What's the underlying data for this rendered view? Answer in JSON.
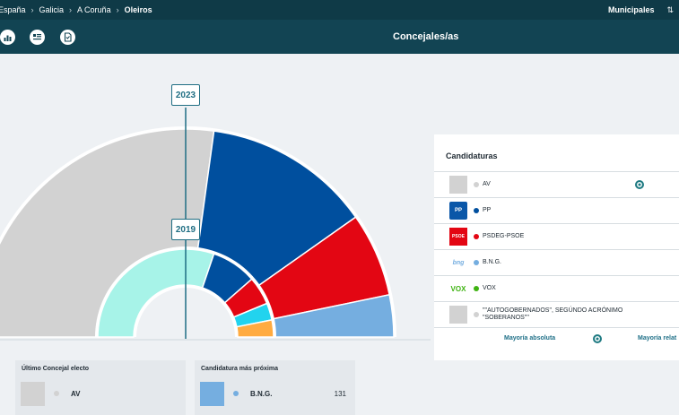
{
  "breadcrumb": [
    "España",
    "Galicia",
    "A Coruña",
    "Oleiros"
  ],
  "election_type": "Municipales",
  "toolbar": {
    "title": "Concejales/as",
    "buttons": [
      {
        "name": "chart-view-button",
        "icon": "bar-chart-icon"
      },
      {
        "name": "list-view-button",
        "icon": "list-icon"
      },
      {
        "name": "document-view-button",
        "icon": "document-icon"
      }
    ]
  },
  "chart_data": [
    {
      "type": "pie",
      "variant": "semicircle",
      "title": "2023",
      "series": [
        {
          "label": "AV",
          "value": 12.5,
          "color": "#d2d2d2"
        },
        {
          "label": "PP",
          "value": 6,
          "color": "#004f9e"
        },
        {
          "label": "PSDEG-PSOE",
          "value": 3,
          "color": "#e30613"
        },
        {
          "label": "B.N.G.",
          "value": 1.5,
          "color": "#75aee0"
        }
      ]
    },
    {
      "type": "pie",
      "variant": "semicircle",
      "title": "2019",
      "series": [
        {
          "label": "AV",
          "value": 14.5,
          "color": "#a7f3e8"
        },
        {
          "label": "PP",
          "value": 4,
          "color": "#004f9e"
        },
        {
          "label": "PSDEG-PSOE",
          "value": 2.5,
          "color": "#e30613"
        },
        {
          "label": "",
          "value": 1.5,
          "color": "#22d3ee"
        },
        {
          "label": "",
          "value": 1.5,
          "color": "#ffab40"
        }
      ]
    }
  ],
  "legend": {
    "title": "Candidaturas",
    "items": [
      {
        "name": "AV",
        "color": "#d2d2d2",
        "logo": "",
        "logo_color": "#d2d2d2"
      },
      {
        "name": "PP",
        "color": "#004f9e",
        "logo": "PP",
        "logo_color": "#0a57a8"
      },
      {
        "name": "PSDEG-PSOE",
        "color": "#e30613",
        "logo": "PSOE",
        "logo_color": "#e30613"
      },
      {
        "name": "B.N.G.",
        "color": "#75aee0",
        "logo": "bng",
        "logo_color": "#75aee0"
      },
      {
        "name": "VOX",
        "color": "#3fb312",
        "logo": "VOX",
        "logo_color": "#3fb312"
      },
      {
        "name": "\"\"AUTOGOBERNADOS\", SEGÚNDO ACRÓNIMO \"SOBERANOS\"\"",
        "color": "#d2d2d2",
        "logo": "",
        "logo_color": "#d2d2d2"
      }
    ],
    "footer": {
      "majority_absolute": "Mayoría absoluta",
      "majority_relative": "Mayoría relat"
    }
  },
  "cards": {
    "last_elected": {
      "title": "Último Concejal electo",
      "party": "AV",
      "color": "#d2d2d2"
    },
    "next_candidate": {
      "title": "Candidatura más próxima",
      "party": "B.N.G.",
      "color": "#75aee0",
      "value": "131"
    }
  }
}
